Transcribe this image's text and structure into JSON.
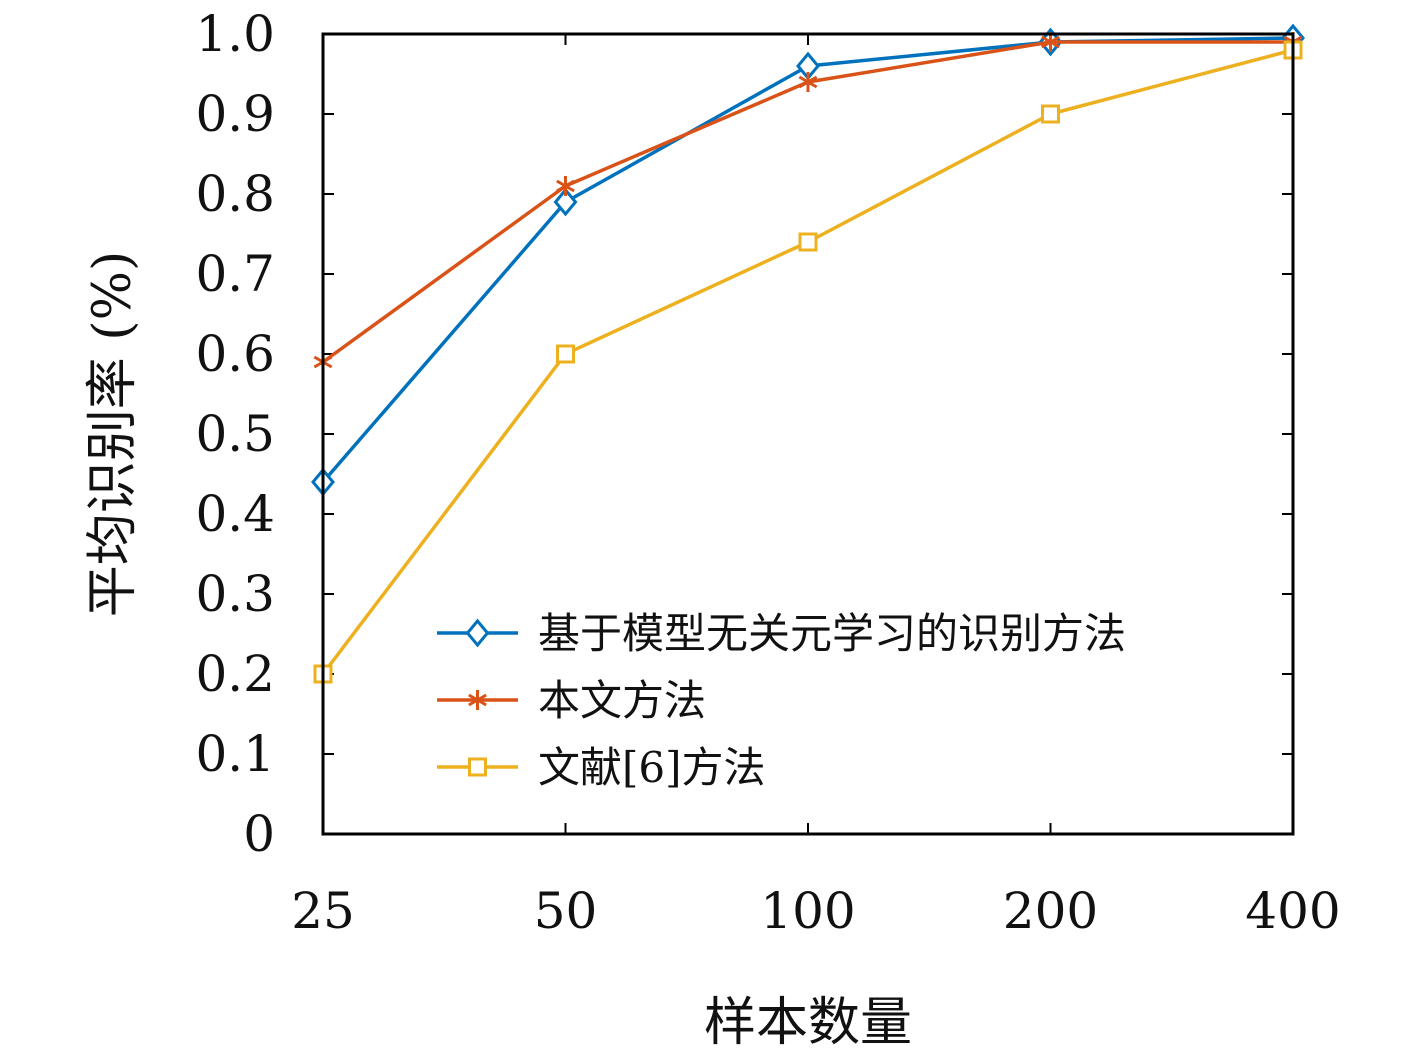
{
  "chart_data": {
    "type": "line",
    "title": "",
    "xlabel": "样本数量",
    "ylabel": "平均识别率 (%)",
    "categories": [
      "25",
      "50",
      "100",
      "200",
      "400"
    ],
    "ylim": [
      0,
      1.0
    ],
    "yticks": [
      "0",
      "0.1",
      "0.2",
      "0.3",
      "0.4",
      "0.5",
      "0.6",
      "0.7",
      "0.8",
      "0.9",
      "1.0"
    ],
    "grid": false,
    "legend_position": "bottom-right",
    "series": [
      {
        "name": "基于模型无关元学习的识别方法",
        "values": [
          0.44,
          0.79,
          0.96,
          0.99,
          0.995
        ],
        "color": "#0072BD",
        "marker": "diamond"
      },
      {
        "name": "本文方法",
        "values": [
          0.59,
          0.81,
          0.94,
          0.99,
          0.99
        ],
        "color": "#D95319",
        "marker": "asterisk"
      },
      {
        "name": "文献[6]方法",
        "values": [
          0.2,
          0.6,
          0.74,
          0.9,
          0.98
        ],
        "color": "#EDB120",
        "marker": "square"
      }
    ]
  }
}
